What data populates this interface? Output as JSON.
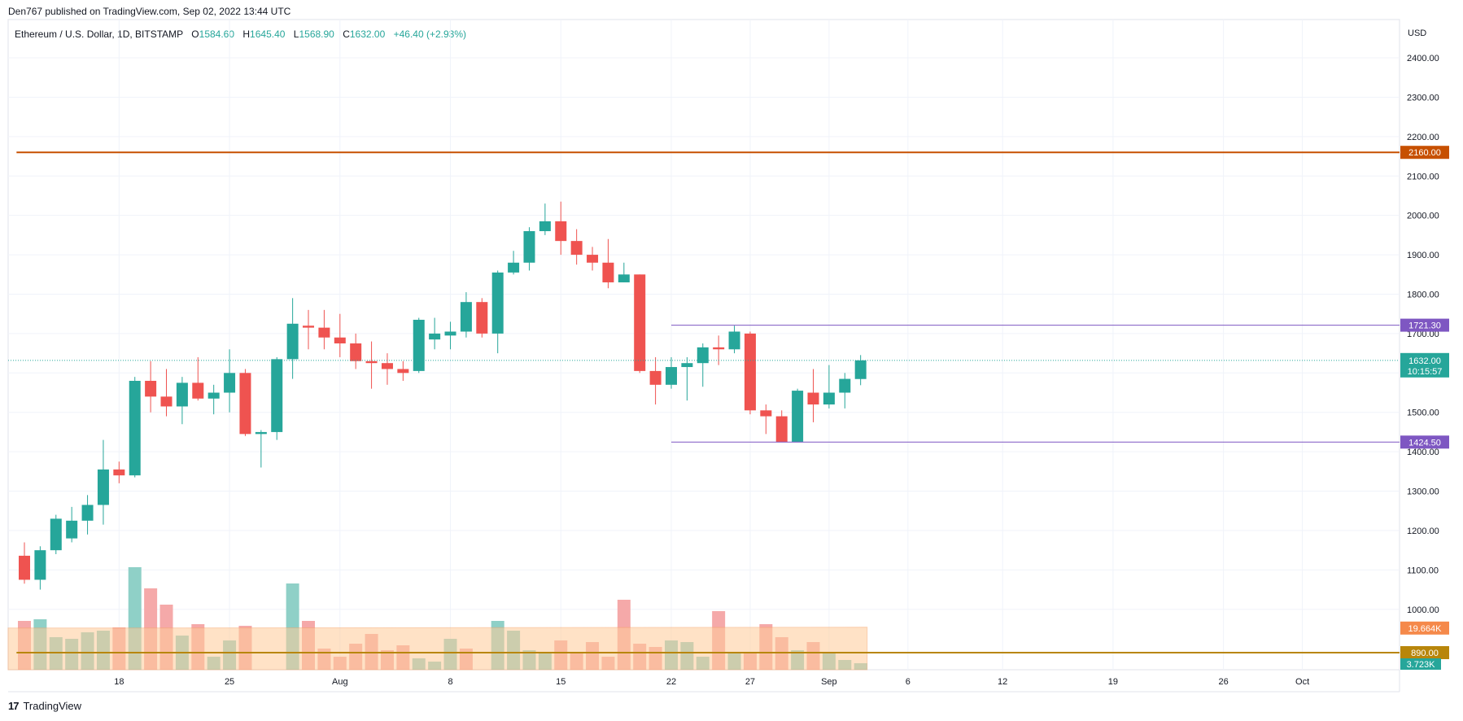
{
  "header": {
    "published": "Den767 published on TradingView.com, Sep 02, 2022 13:44 UTC"
  },
  "legend": {
    "symbol": "Ethereum / U.S. Dollar, 1D, BITSTAMP",
    "open_label": "O",
    "open": "1584.60",
    "high_label": "H",
    "high": "1645.40",
    "low_label": "L",
    "low": "1568.90",
    "close_label": "C",
    "close": "1632.00",
    "change": "+46.40 (+2.93%)"
  },
  "footer": {
    "brand": "TradingView",
    "logo_icon": "tradingview-logo-icon"
  },
  "colors": {
    "up": "#26a69a",
    "down": "#ef5350",
    "vol_up": "#8fd0c7",
    "vol_down": "#f5a9a9",
    "vol_ma_fill": "#ffcc99",
    "resistance_2160": "#c75000",
    "level_purple": "#7e57c2",
    "level_890": "#b8860b",
    "grid": "#f0f3fa"
  },
  "chart_data": {
    "type": "candlestick",
    "currency": "USD",
    "timeframe": "1D",
    "y_range": [
      890,
      2460
    ],
    "y_ticks": [
      1000,
      1100,
      1200,
      1300,
      1400,
      1500,
      1600,
      1700,
      1800,
      1900,
      2000,
      2100,
      2200,
      2300,
      2400
    ],
    "y_tick_labels": [
      "1000.00",
      "1100.00",
      "1200.00",
      "1300.00",
      "1400.00",
      "1500.00",
      "1600.00",
      "1700.00",
      "1800.00",
      "1900.00",
      "2000.00",
      "2100.00",
      "2200.00",
      "2300.00",
      "2400.00"
    ],
    "x_range": [
      -0.5,
      88
    ],
    "x_ticks": [
      {
        "i": 6,
        "label": "18"
      },
      {
        "i": 13,
        "label": "25"
      },
      {
        "i": 20,
        "label": "Aug"
      },
      {
        "i": 27,
        "label": "8"
      },
      {
        "i": 34,
        "label": "15"
      },
      {
        "i": 41,
        "label": "22"
      },
      {
        "i": 46,
        "label": "27"
      },
      {
        "i": 51,
        "label": "Sep"
      },
      {
        "i": 56,
        "label": "6"
      },
      {
        "i": 62,
        "label": "12"
      },
      {
        "i": 69,
        "label": "19"
      },
      {
        "i": 76,
        "label": "26"
      },
      {
        "i": 81,
        "label": "Oct"
      }
    ],
    "candles": [
      [
        1136,
        1170,
        1065,
        1075
      ],
      [
        1075,
        1160,
        1050,
        1150
      ],
      [
        1150,
        1240,
        1140,
        1230
      ],
      [
        1180,
        1260,
        1170,
        1225
      ],
      [
        1225,
        1290,
        1190,
        1265
      ],
      [
        1265,
        1430,
        1215,
        1355
      ],
      [
        1355,
        1375,
        1320,
        1340
      ],
      [
        1340,
        1590,
        1335,
        1580
      ],
      [
        1580,
        1630,
        1500,
        1540
      ],
      [
        1540,
        1610,
        1490,
        1515
      ],
      [
        1515,
        1590,
        1470,
        1575
      ],
      [
        1575,
        1640,
        1530,
        1535
      ],
      [
        1535,
        1570,
        1495,
        1550
      ],
      [
        1550,
        1660,
        1500,
        1600
      ],
      [
        1600,
        1610,
        1440,
        1445
      ],
      [
        1445,
        1455,
        1360,
        1450
      ],
      [
        1450,
        1640,
        1430,
        1635
      ],
      [
        1635,
        1790,
        1585,
        1725
      ],
      [
        1720,
        1760,
        1660,
        1715
      ],
      [
        1715,
        1760,
        1660,
        1690
      ],
      [
        1690,
        1750,
        1640,
        1675
      ],
      [
        1675,
        1700,
        1610,
        1630
      ],
      [
        1630,
        1680,
        1560,
        1625
      ],
      [
        1625,
        1650,
        1570,
        1610
      ],
      [
        1610,
        1630,
        1580,
        1600
      ],
      [
        1605,
        1740,
        1600,
        1735
      ],
      [
        1685,
        1740,
        1660,
        1700
      ],
      [
        1695,
        1730,
        1660,
        1705
      ],
      [
        1705,
        1805,
        1690,
        1780
      ],
      [
        1780,
        1790,
        1690,
        1700
      ],
      [
        1700,
        1860,
        1650,
        1855
      ],
      [
        1855,
        1910,
        1850,
        1880
      ],
      [
        1880,
        1970,
        1860,
        1960
      ],
      [
        1960,
        2030,
        1950,
        1985
      ],
      [
        1985,
        2035,
        1900,
        1935
      ],
      [
        1935,
        1965,
        1875,
        1900
      ],
      [
        1900,
        1920,
        1860,
        1880
      ],
      [
        1880,
        1940,
        1815,
        1830
      ],
      [
        1830,
        1880,
        1830,
        1850
      ],
      [
        1850,
        1850,
        1600,
        1605
      ],
      [
        1605,
        1640,
        1520,
        1570
      ],
      [
        1570,
        1640,
        1560,
        1615
      ],
      [
        1615,
        1640,
        1530,
        1625
      ],
      [
        1625,
        1675,
        1565,
        1665
      ],
      [
        1665,
        1695,
        1620,
        1660
      ],
      [
        1660,
        1720,
        1650,
        1705
      ],
      [
        1700,
        1705,
        1495,
        1505
      ],
      [
        1505,
        1520,
        1445,
        1490
      ],
      [
        1490,
        1505,
        1424,
        1425
      ],
      [
        1425,
        1560,
        1424,
        1555
      ],
      [
        1550,
        1610,
        1475,
        1520
      ],
      [
        1520,
        1620,
        1510,
        1550
      ],
      [
        1550,
        1600,
        1510,
        1585
      ],
      [
        1584.6,
        1645.4,
        1568.9,
        1632
      ]
    ],
    "volume": {
      "y_range": [
        0,
        100
      ],
      "values": [
        30,
        31,
        20,
        19,
        23,
        24,
        26,
        63,
        50,
        40,
        21,
        28,
        8,
        18,
        27,
        0,
        0,
        53,
        30,
        13,
        8,
        16,
        22,
        12,
        15,
        7,
        5,
        19,
        13,
        0,
        30,
        24,
        12,
        11,
        18,
        11,
        17,
        8,
        43,
        16,
        14,
        18,
        17,
        8,
        36,
        10,
        10,
        28,
        20,
        12,
        17,
        10,
        6,
        4
      ],
      "colors_up": [
        false,
        true,
        true,
        true,
        true,
        true,
        false,
        true,
        false,
        false,
        true,
        false,
        true,
        true,
        false,
        true,
        true,
        true,
        false,
        false,
        false,
        false,
        false,
        false,
        false,
        true,
        true,
        true,
        false,
        true,
        true,
        true,
        true,
        true,
        false,
        false,
        false,
        false,
        false,
        false,
        false,
        true,
        true,
        true,
        false,
        true,
        false,
        false,
        false,
        true,
        false,
        true,
        true,
        true
      ],
      "ma_value_label": "19.664K",
      "last_value_label": "3.723K"
    },
    "horizontal_lines": [
      {
        "price": 2160.0,
        "label": "2160.00",
        "color": "#c75000",
        "start_index": -0.5
      },
      {
        "price": 1721.3,
        "label": "1721.30",
        "color": "#7e57c2",
        "start_index": 41
      },
      {
        "price": 1424.5,
        "label": "1424.50",
        "color": "#7e57c2",
        "start_index": 41
      },
      {
        "price": 890.0,
        "label": "890.00",
        "color": "#b8860b",
        "start_index": -0.5
      }
    ],
    "last_price": {
      "price": 1632.0,
      "label": "1632.00",
      "countdown": "10:15:57"
    }
  }
}
